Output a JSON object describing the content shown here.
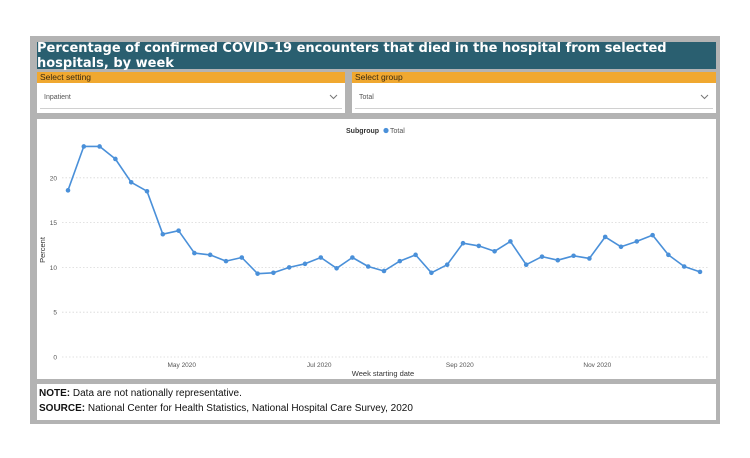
{
  "title": "Percentage of confirmed COVID-19 encounters that died in the hospital from selected hospitals, by week",
  "filters": {
    "setting": {
      "label": "Select setting",
      "value": "Inpatient"
    },
    "group": {
      "label": "Select group",
      "value": "Total"
    }
  },
  "legend": {
    "title": "Subgroup",
    "item": "Total",
    "color": "#4a90d9"
  },
  "colors": {
    "title_bar": "#2a5f70",
    "slicer_header": "#f0a830",
    "line": "#4a90d9"
  },
  "chart_data": {
    "type": "line",
    "xlabel": "Week starting date",
    "ylabel": "Percent",
    "ylim": [
      0,
      25
    ],
    "yticks": [
      0,
      5,
      10,
      15,
      20
    ],
    "xtick_labels": [
      "May 2020",
      "Jul 2020",
      "Sep 2020",
      "Nov 2020"
    ],
    "xtick_positions": [
      7.2,
      15.9,
      24.8,
      33.5
    ],
    "grid": true,
    "series": [
      {
        "name": "Total",
        "values": [
          18.6,
          23.5,
          23.5,
          22.1,
          19.5,
          18.5,
          13.7,
          14.1,
          11.6,
          11.4,
          10.7,
          11.1,
          9.3,
          9.4,
          10.0,
          10.4,
          11.1,
          9.9,
          11.1,
          10.1,
          9.6,
          10.7,
          11.4,
          9.4,
          10.3,
          12.7,
          12.4,
          11.8,
          12.9,
          10.3,
          11.2,
          10.8,
          11.3,
          11.0,
          13.4,
          12.3,
          12.9,
          13.6,
          11.4,
          10.1,
          9.5
        ]
      }
    ]
  },
  "notes": {
    "note_label": "NOTE:",
    "note_text": " Data are not nationally representative.",
    "source_label": "SOURCE:",
    "source_text": " National Center for Health Statistics, National Hospital Care Survey, 2020"
  }
}
